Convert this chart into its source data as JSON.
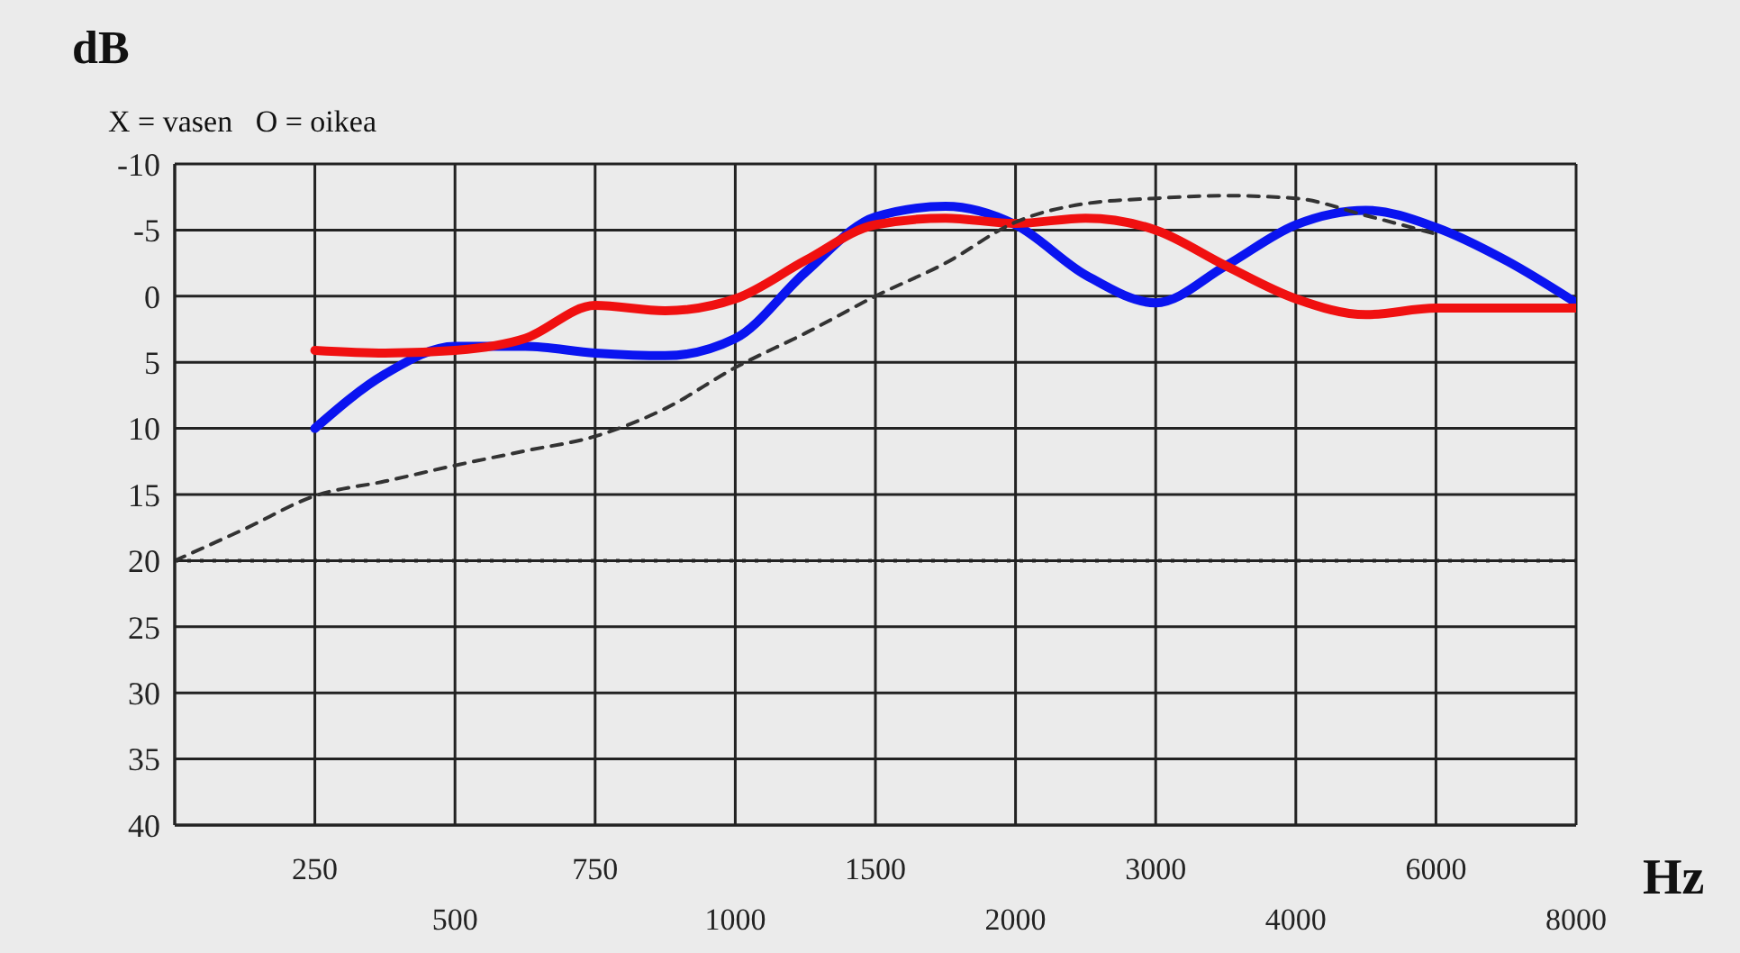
{
  "chart_data": {
    "type": "line",
    "ylabel": "dB",
    "xlabel": "Hz",
    "annotations": [
      "X = vasen   O = oikea"
    ],
    "categories": [
      null,
      null,
      "250",
      null,
      "500",
      null,
      "750",
      null,
      "1000",
      null,
      "1500",
      null,
      "2000",
      null,
      "3000",
      null,
      "4000",
      null,
      "6000",
      null,
      "8000"
    ],
    "series": [
      {
        "color": "#0a14f0",
        "values": [
          null,
          null,
          10,
          5.9,
          3.8,
          3.8,
          4.3,
          4.5,
          3.2,
          -1.8,
          -6,
          -6.8,
          -5.4,
          -1.6,
          0.5,
          -2.3,
          -5.4,
          -6.5,
          -5.2,
          -2.7,
          0.5
        ]
      },
      {
        "color": "#f01010",
        "values": [
          null,
          null,
          4.1,
          4.3,
          4.1,
          3.2,
          0.7,
          1.1,
          0.2,
          -2.7,
          -5.4,
          -5.9,
          -5.5,
          -5.9,
          -5,
          -2.3,
          0.2,
          1.4,
          0.9,
          0.9,
          0.9
        ]
      },
      {
        "color": "#333333",
        "line_style": "dashed",
        "values": [
          20,
          17.6,
          15.1,
          14,
          12.8,
          11.7,
          10.6,
          8.5,
          5.4,
          2.8,
          0,
          -2.5,
          -5.6,
          -7,
          -7.4,
          -7.6,
          -7.4,
          -6.1,
          -4.7,
          null,
          null
        ]
      }
    ],
    "ylim": [
      40,
      -10
    ],
    "yticks": [
      -10,
      -5,
      0,
      5,
      10,
      15,
      20,
      25,
      30,
      35,
      40
    ],
    "ref_lines": [
      {
        "axis": "y",
        "value": 20,
        "line_style": "dotted",
        "color": "#222222"
      }
    ],
    "grid": true,
    "marker": "none"
  }
}
